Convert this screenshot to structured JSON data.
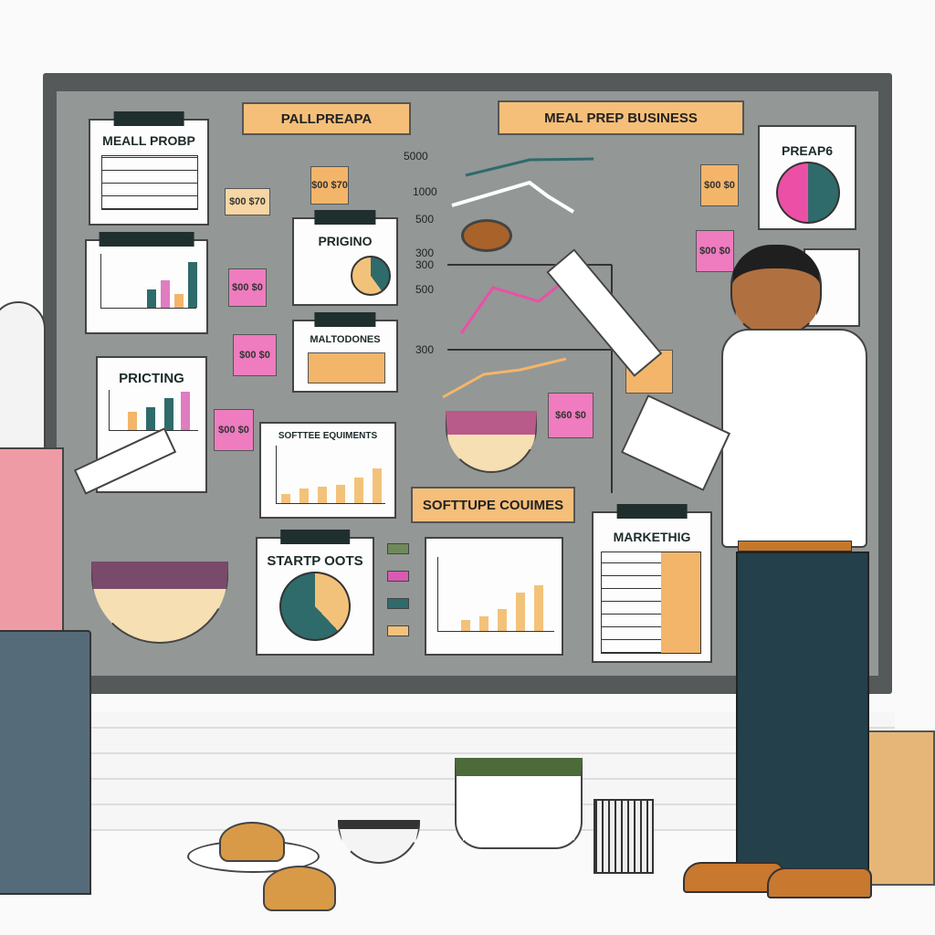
{
  "board": {
    "header_left": "PALLPREAPA",
    "header_right": "MEAL PREP BUSINESS",
    "section_label": "SOFTTUPE COUIMES"
  },
  "cards": {
    "meal_prep": "MEALL PROBP",
    "pricing_pie": "PRIGINO",
    "pricing_bars": "PRICTING",
    "maltodones": "MALTODONES",
    "software_equipments": "SOFTTEE EQUIMENTS",
    "startup_costs": "STARTP OOTS",
    "marketing": "MARKETHIG",
    "preap": "PREAP6"
  },
  "axis_ticks": [
    "5000",
    "1000",
    "500",
    "300",
    "300",
    "500",
    "300"
  ],
  "notes": [
    "$00 $70",
    "$00 $70",
    "$00 $0",
    "$00 $0",
    "$00 $0",
    "$60 $0",
    "$00 $0",
    "$00 $0"
  ],
  "colors": {
    "board": "#939796",
    "frame": "#55595a",
    "accent_orange": "#f5bf7a",
    "accent_pink": "#ee7cbf",
    "teal": "#2f6b6b"
  }
}
